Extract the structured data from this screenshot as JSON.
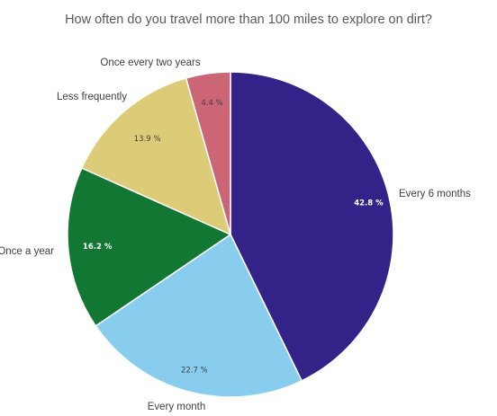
{
  "chart_data": {
    "type": "pie",
    "title": "How often do you travel more than 100 miles to explore on dirt?",
    "slices": [
      {
        "label": "Every 6 months",
        "value": 42.8,
        "value_label": "42.8 %",
        "color": "#332288",
        "label_color": "#ffffff"
      },
      {
        "label": "Every month",
        "value": 22.7,
        "value_label": "22.7 %",
        "color": "#88ccee",
        "label_color": "#404040"
      },
      {
        "label": "Once a year",
        "value": 16.2,
        "value_label": "16.2 %",
        "color": "#117733",
        "label_color": "#ffffff"
      },
      {
        "label": "Less frequently",
        "value": 13.9,
        "value_label": "13.9 %",
        "color": "#ddcc77",
        "label_color": "#404040"
      },
      {
        "label": "Once every two years",
        "value": 4.4,
        "value_label": "4.4 %",
        "color": "#cc6677",
        "label_color": "#404040"
      }
    ],
    "legend": "none"
  }
}
